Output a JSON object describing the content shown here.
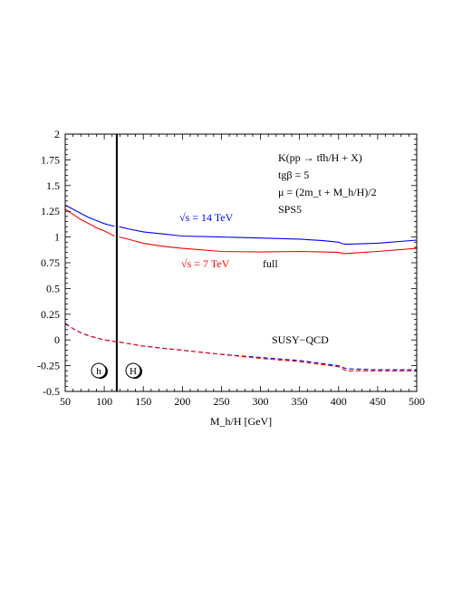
{
  "chart_data": {
    "type": "line",
    "xlabel": "M_h/H [GeV]",
    "ylabel": "",
    "xlim": [
      50,
      500
    ],
    "ylim": [
      -0.5,
      2
    ],
    "x_ticks": [
      "50",
      "100",
      "150",
      "200",
      "250",
      "300",
      "350",
      "400",
      "450",
      "500"
    ],
    "y_ticks": [
      "-0.5",
      "-0.25",
      "0",
      "0.25",
      "0.5",
      "0.75",
      "1",
      "1.25",
      "1.5",
      "1.75",
      "2"
    ],
    "grid": false,
    "vertical_line_x": 116,
    "annotations": {
      "process": "K(pp → tt̄h/H + X)",
      "tanbeta": "tgβ = 5",
      "scale": "μ = (2m_t + M_h/H)/2",
      "scenario": "SPS5",
      "full_label": "full",
      "susy_label": "SUSY−QCD",
      "h_region": "h",
      "H_region": "H"
    },
    "series": [
      {
        "name": "√s = 14 TeV",
        "part": "full",
        "color": "#0000ff",
        "dashed": false,
        "x": [
          50,
          60,
          70,
          80,
          90,
          100,
          110,
          113
        ],
        "y": [
          1.31,
          1.27,
          1.23,
          1.19,
          1.16,
          1.13,
          1.11,
          1.105
        ]
      },
      {
        "name": "√s = 14 TeV",
        "part": "full",
        "color": "#0000ff",
        "dashed": false,
        "x": [
          119,
          130,
          150,
          175,
          200,
          250,
          300,
          350,
          380,
          400,
          405,
          410,
          450,
          500
        ],
        "y": [
          1.1,
          1.08,
          1.05,
          1.03,
          1.01,
          1.0,
          0.99,
          0.98,
          0.965,
          0.95,
          0.935,
          0.93,
          0.94,
          0.97
        ]
      },
      {
        "name": "√s = 7 TeV",
        "part": "full",
        "color": "#ff0000",
        "dashed": false,
        "x": [
          50,
          60,
          70,
          80,
          90,
          100,
          110,
          113
        ],
        "y": [
          1.27,
          1.22,
          1.17,
          1.13,
          1.09,
          1.06,
          1.02,
          1.01
        ]
      },
      {
        "name": "√s = 7 TeV",
        "part": "full",
        "color": "#ff0000",
        "dashed": false,
        "x": [
          119,
          130,
          150,
          175,
          200,
          250,
          300,
          350,
          380,
          400,
          405,
          410,
          450,
          500
        ],
        "y": [
          1.0,
          0.98,
          0.94,
          0.91,
          0.89,
          0.86,
          0.855,
          0.86,
          0.855,
          0.85,
          0.84,
          0.84,
          0.86,
          0.89
        ]
      },
      {
        "name": "√s = 14 TeV",
        "part": "SUSY-QCD",
        "color": "#0000ff",
        "dashed": true,
        "x": [
          50,
          60,
          70,
          80,
          90,
          100,
          110,
          113,
          119,
          150,
          200,
          250,
          300,
          350,
          400,
          410,
          450,
          500
        ],
        "y": [
          0.16,
          0.11,
          0.07,
          0.04,
          0.02,
          0.0,
          -0.01,
          -0.015,
          -0.02,
          -0.06,
          -0.1,
          -0.14,
          -0.17,
          -0.2,
          -0.25,
          -0.28,
          -0.29,
          -0.29
        ]
      },
      {
        "name": "√s = 7 TeV",
        "part": "SUSY-QCD",
        "color": "#ff0000",
        "dashed": true,
        "x": [
          50,
          60,
          70,
          80,
          90,
          100,
          110,
          113,
          119,
          150,
          200,
          250,
          300,
          350,
          400,
          410,
          450,
          500
        ],
        "y": [
          0.16,
          0.11,
          0.07,
          0.04,
          0.02,
          0.0,
          -0.01,
          -0.015,
          -0.02,
          -0.06,
          -0.1,
          -0.14,
          -0.18,
          -0.21,
          -0.26,
          -0.3,
          -0.3,
          -0.3
        ]
      }
    ],
    "series_labels": [
      {
        "text": "√s = 14 TeV",
        "color": "#0000ff"
      },
      {
        "text": "√s = 7 TeV",
        "color": "#ff0000"
      }
    ]
  }
}
